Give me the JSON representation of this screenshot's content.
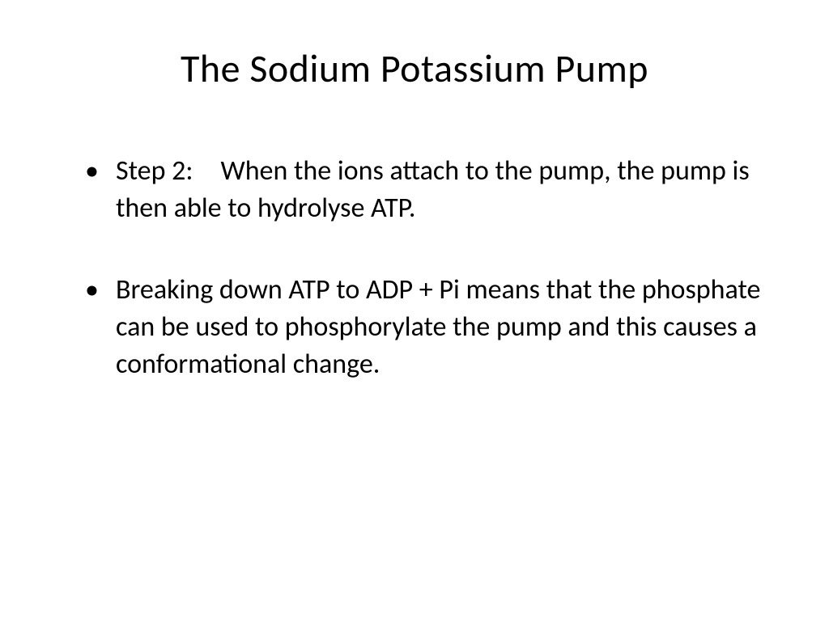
{
  "slide": {
    "title": "The Sodium Potassium Pump",
    "bullets": [
      "Step 2: When the ions attach to the pump, the pump is then able to hydrolyse ATP.",
      "Breaking down ATP to ADP + Pi means that the phosphate can be used to phosphorylate the pump and this causes a conformational change."
    ]
  },
  "styling": {
    "background_color": "#ffffff",
    "text_color": "#000000",
    "title_fontsize": 48,
    "title_weight": 400,
    "body_fontsize": 34,
    "font_family": "Calibri",
    "bullet_char": "•",
    "line_height": 1.35
  }
}
